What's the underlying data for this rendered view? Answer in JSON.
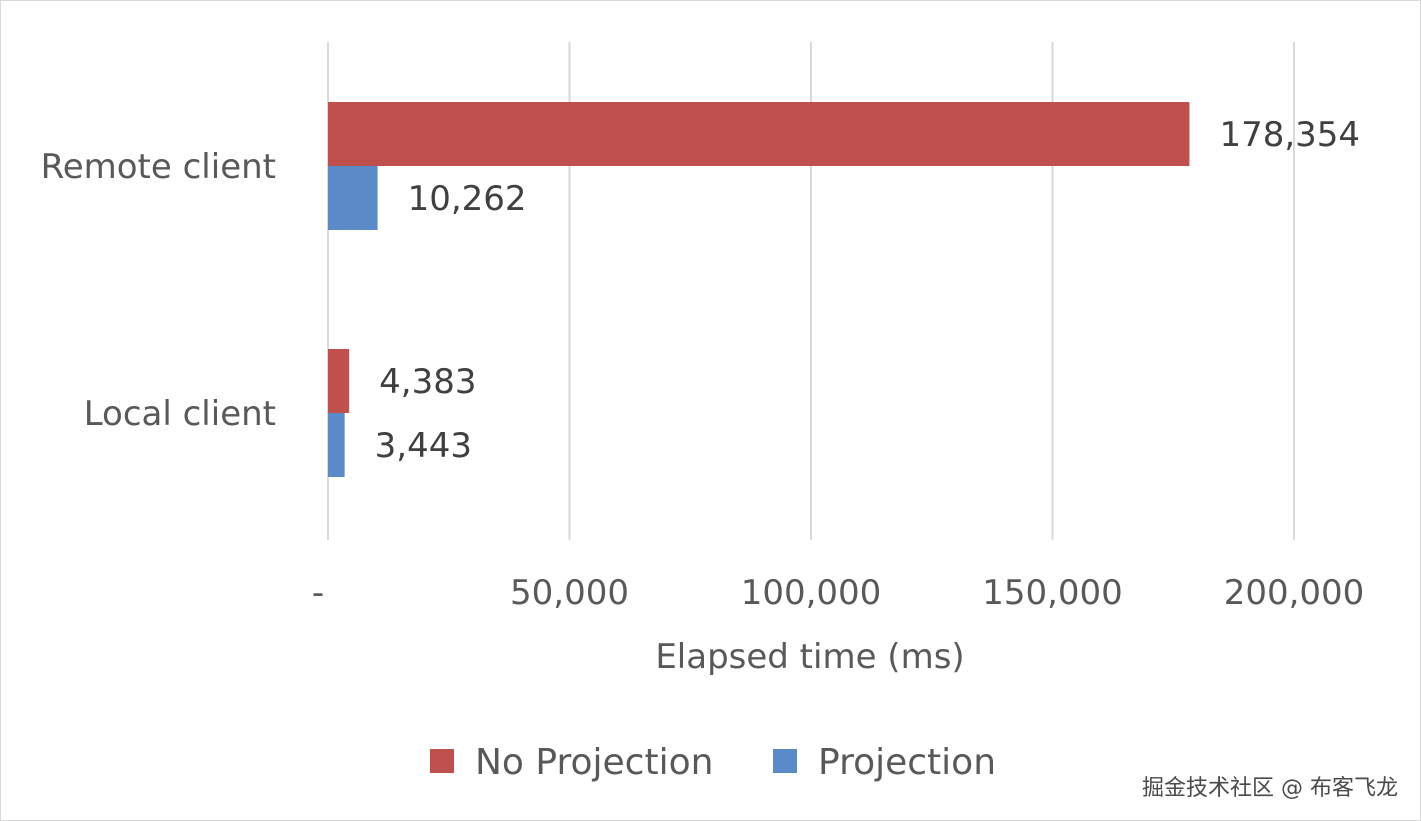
{
  "chart_data": {
    "type": "bar",
    "orientation": "horizontal",
    "categories": [
      "Remote client",
      "Local client"
    ],
    "series": [
      {
        "name": "No Projection",
        "color": "#c0504d",
        "values": [
          178354,
          4383
        ]
      },
      {
        "name": "Projection",
        "color": "#5b8ac8",
        "values": [
          10262,
          3443
        ]
      }
    ],
    "data_labels": {
      "No Projection": [
        "178,354",
        "4,383"
      ],
      "Projection": [
        "10,262",
        "3,443"
      ]
    },
    "xlabel": "Elapsed time (ms)",
    "ylabel": "",
    "xlim": [
      0,
      200000
    ],
    "x_ticks": [
      0,
      50000,
      100000,
      150000,
      200000
    ],
    "x_tick_labels": [
      "-",
      "50,000",
      "100,000",
      "150,000",
      "200,000"
    ],
    "grid": "vertical",
    "legend_position": "bottom"
  },
  "watermark": "掘金技术社区 @ 布客飞龙"
}
